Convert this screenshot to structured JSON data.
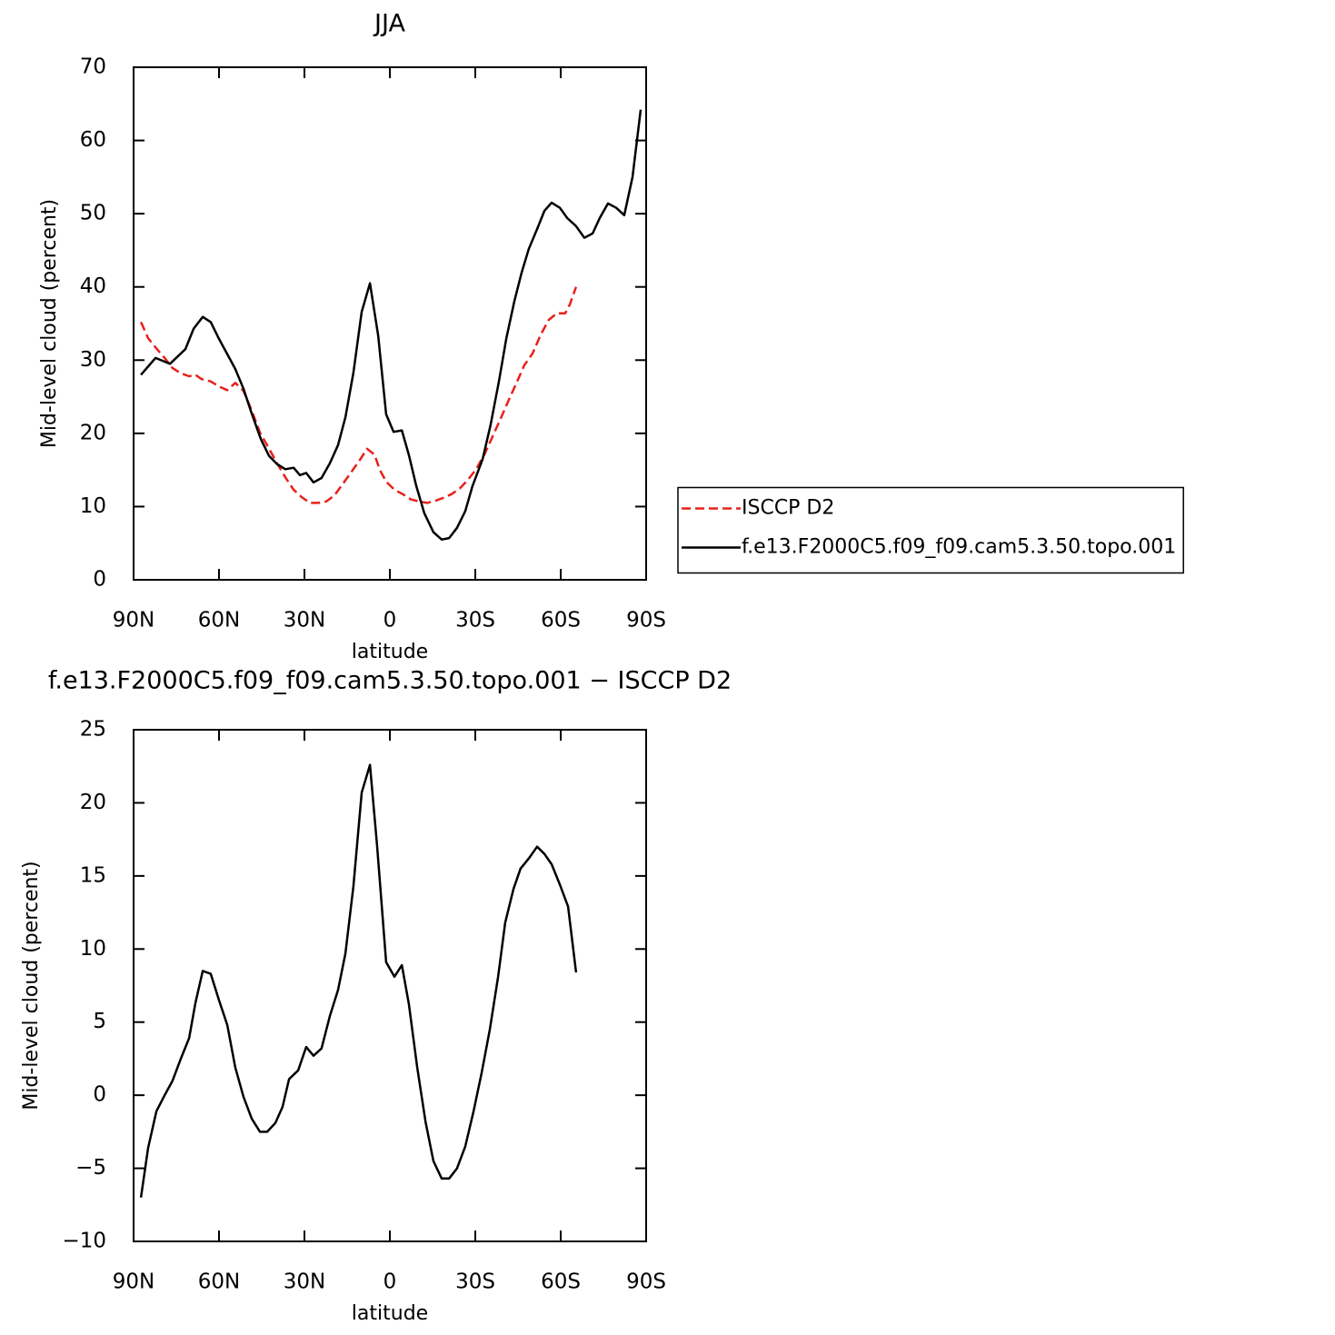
{
  "chart_data": [
    {
      "type": "line",
      "title": "JJA",
      "xlabel": "latitude",
      "ylabel": "Mid-level cloud (percent)",
      "xlim": [
        90,
        -90
      ],
      "xticks": [
        {
          "value": 90,
          "label": "90N"
        },
        {
          "value": 60,
          "label": "60N"
        },
        {
          "value": 30,
          "label": "30N"
        },
        0,
        {
          "value": -30,
          "label": "30S"
        },
        {
          "value": -60,
          "label": "60S"
        },
        {
          "value": -90,
          "label": "90S"
        }
      ],
      "ylim": [
        0,
        70
      ],
      "yticks": [
        0,
        10,
        20,
        30,
        40,
        50,
        60,
        70
      ],
      "legend": "right",
      "series": [
        {
          "name": "ISCCP D2",
          "color": "#e8201c",
          "dashed": true,
          "x": [
            87.4,
            84.9,
            82.0,
            79.1,
            76.3,
            73.4,
            70.5,
            68.3,
            66.1,
            62.9,
            60.0,
            57.1,
            54.3,
            51.4,
            48.5,
            45.6,
            42.4,
            39.6,
            36.7,
            33.8,
            31.0,
            28.1,
            25.2,
            22.3,
            19.5,
            16.3,
            13.4,
            10.5,
            8.0,
            5.4,
            3.5,
            1.3,
            -1.6,
            -4.5,
            -7.3,
            -10.2,
            -13.1,
            -16.0,
            -18.8,
            -21.7,
            -24.6,
            -27.5,
            -30.3,
            -33.2,
            -36.1,
            -39.0,
            -41.8,
            -44.7,
            -47.2,
            -50.1,
            -53.0,
            -55.8,
            -58.7,
            -61.6,
            -63.2,
            -65.4
          ],
          "values": [
            35.2,
            33.0,
            31.6,
            30.3,
            28.9,
            28.2,
            27.8,
            28.0,
            27.4,
            27.1,
            26.4,
            25.9,
            26.9,
            25.8,
            23.1,
            20.1,
            17.9,
            15.9,
            14.0,
            12.3,
            11.3,
            10.5,
            10.5,
            10.7,
            11.5,
            13.2,
            14.8,
            16.4,
            17.9,
            17.1,
            15.0,
            13.4,
            12.3,
            11.7,
            11.0,
            10.7,
            10.5,
            10.8,
            11.2,
            11.7,
            12.5,
            13.7,
            15.1,
            17.1,
            19.6,
            22.1,
            24.6,
            27.1,
            29.3,
            30.9,
            33.5,
            35.5,
            36.4,
            36.4,
            37.6,
            40.0
          ]
        },
        {
          "name": "f.e13.F2000C5.f09_f09.cam5.3.50.topo.001",
          "color": "#000000",
          "dashed": false,
          "x": [
            87.4,
            82.3,
            77.2,
            71.8,
            68.9,
            65.7,
            62.9,
            60.0,
            54.3,
            51.4,
            48.5,
            45.3,
            42.4,
            39.6,
            36.7,
            33.8,
            31.6,
            29.4,
            26.8,
            24.0,
            21.1,
            18.2,
            15.6,
            12.8,
            9.9,
            7.0,
            4.1,
            1.3,
            -1.3,
            -4.2,
            -6.7,
            -9.3,
            -12.1,
            -15.3,
            -18.2,
            -20.8,
            -23.6,
            -26.5,
            -29.0,
            -32.6,
            -35.4,
            -38.3,
            -40.9,
            -43.7,
            -46.3,
            -48.8,
            -51.7,
            -54.3,
            -56.8,
            -59.7,
            -62.3,
            -65.4,
            -68.3,
            -71.2,
            -73.7,
            -76.6,
            -79.5,
            -82.3,
            -85.2,
            -88.1
          ],
          "values": [
            28.0,
            30.3,
            29.5,
            31.5,
            34.3,
            35.9,
            35.2,
            32.9,
            28.8,
            26.1,
            22.7,
            19.2,
            16.9,
            15.8,
            15.1,
            15.3,
            14.3,
            14.6,
            13.3,
            13.9,
            15.9,
            18.4,
            22.2,
            28.3,
            36.6,
            40.5,
            33.3,
            22.6,
            20.2,
            20.4,
            17.0,
            12.8,
            9.1,
            6.5,
            5.5,
            5.7,
            7.1,
            9.4,
            12.8,
            16.5,
            21.2,
            27.1,
            33.0,
            38.0,
            42.0,
            45.2,
            47.9,
            50.4,
            51.5,
            50.8,
            49.4,
            48.3,
            46.7,
            47.3,
            49.4,
            51.4,
            50.8,
            49.8,
            55.0,
            64.2
          ]
        }
      ]
    },
    {
      "type": "line",
      "title": "f.e13.F2000C5.f09_f09.cam5.3.50.topo.001 − ISCCP D2",
      "xlabel": "latitude",
      "ylabel": "Mid-level cloud (percent)",
      "xlim": [
        90,
        -90
      ],
      "xticks": [
        {
          "value": 90,
          "label": "90N"
        },
        {
          "value": 60,
          "label": "60N"
        },
        {
          "value": 30,
          "label": "30N"
        },
        0,
        {
          "value": -30,
          "label": "30S"
        },
        {
          "value": -60,
          "label": "60S"
        },
        {
          "value": -90,
          "label": "90S"
        }
      ],
      "ylim": [
        -10,
        25
      ],
      "yticks": [
        {
          "value": -10,
          "label": "−10"
        },
        {
          "value": -5,
          "label": "−5"
        },
        0,
        5,
        10,
        15,
        20,
        25
      ],
      "series": [
        {
          "color": "#000000",
          "dashed": false,
          "x": [
            87.4,
            84.9,
            82.0,
            79.1,
            76.3,
            73.4,
            70.5,
            68.3,
            65.7,
            62.9,
            60.0,
            57.1,
            54.3,
            51.4,
            48.5,
            45.6,
            43.1,
            40.2,
            37.7,
            35.4,
            32.2,
            29.4,
            26.8,
            24.0,
            21.1,
            18.2,
            15.6,
            12.8,
            9.9,
            7.0,
            4.5,
            1.3,
            -1.6,
            -4.2,
            -6.7,
            -9.6,
            -12.5,
            -15.3,
            -18.2,
            -20.8,
            -23.6,
            -26.5,
            -29.4,
            -32.2,
            -35.1,
            -38.0,
            -40.5,
            -43.4,
            -45.9,
            -48.8,
            -51.7,
            -54.3,
            -56.8,
            -59.7,
            -62.6,
            -65.4
          ],
          "values": [
            -7.0,
            -3.6,
            -1.1,
            0.0,
            1.0,
            2.5,
            3.9,
            6.3,
            8.5,
            8.3,
            6.5,
            4.8,
            1.9,
            -0.1,
            -1.6,
            -2.5,
            -2.5,
            -1.9,
            -0.8,
            1.1,
            1.7,
            3.3,
            2.7,
            3.2,
            5.4,
            7.2,
            9.7,
            14.3,
            20.7,
            22.6,
            17.1,
            9.1,
            8.1,
            8.9,
            6.2,
            1.9,
            -1.8,
            -4.5,
            -5.7,
            -5.7,
            -5.0,
            -3.5,
            -1.1,
            1.5,
            4.5,
            8.1,
            11.8,
            14.1,
            15.5,
            16.2,
            17.0,
            16.5,
            15.8,
            14.4,
            12.9,
            8.4
          ]
        }
      ]
    }
  ]
}
